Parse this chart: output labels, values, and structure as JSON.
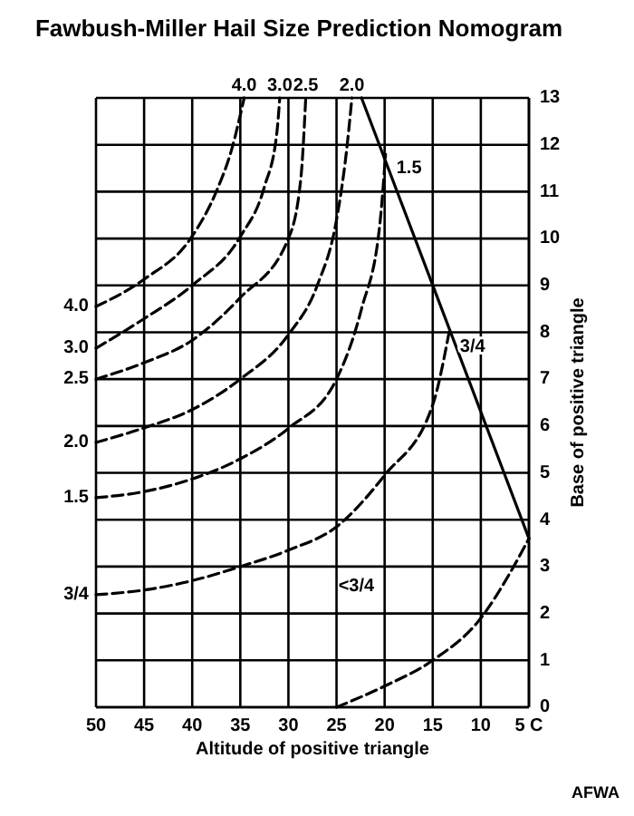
{
  "chart_data": {
    "type": "line",
    "title": "Fawbush-Miller Hail Size Prediction Nomogram",
    "xlabel": "Altitude of positive triangle",
    "ylabel": "Base of positive triangle",
    "xlim": [
      50,
      5
    ],
    "xticks": [
      50,
      45,
      40,
      35,
      30,
      25,
      20,
      15,
      10,
      {
        "value": 5,
        "label": "5 C"
      }
    ],
    "ylim": [
      0,
      13
    ],
    "yticks": [
      0,
      1,
      2,
      3,
      4,
      5,
      6,
      7,
      8,
      9,
      10,
      11,
      12,
      13
    ],
    "grid": true,
    "marker": "none",
    "series": [
      {
        "name": "4.0",
        "color": "#000000",
        "line_style": "dashed",
        "x": [
          50,
          45,
          40,
          37.5,
          35.9,
          34.6
        ],
        "values": [
          8.55,
          9.13,
          10.05,
          11,
          11.9,
          13
        ]
      },
      {
        "name": "3.0",
        "color": "#000000",
        "line_style": "dashed",
        "x": [
          50,
          45,
          40,
          35,
          32.5,
          31.2,
          30.9
        ],
        "values": [
          7.66,
          8.29,
          9,
          10.04,
          11.1,
          12.26,
          13
        ]
      },
      {
        "name": "2.5",
        "color": "#000000",
        "line_style": "dashed",
        "x": [
          50,
          45,
          40,
          35,
          30,
          28.7,
          28.2
        ],
        "values": [
          7,
          7.35,
          7.83,
          8.74,
          10,
          11.3,
          13
        ]
      },
      {
        "name": "2.0",
        "color": "#000000",
        "line_style": "dashed",
        "x": [
          50,
          45,
          40,
          35,
          30,
          27,
          25,
          24,
          23.4
        ],
        "values": [
          5.65,
          5.96,
          6.35,
          7,
          7.95,
          9,
          10.4,
          11.8,
          13
        ]
      },
      {
        "name": "1.5",
        "color": "#000000",
        "line_style": "dashed",
        "x": [
          50,
          45,
          40,
          35,
          30,
          25,
          22.4,
          20.5,
          19.9
        ],
        "values": [
          4.47,
          4.6,
          4.87,
          5.3,
          5.95,
          7,
          8.5,
          10.3,
          11.8
        ]
      },
      {
        "name": "3/4",
        "color": "#000000",
        "line_style": "dashed",
        "x": [
          50,
          45,
          40,
          35,
          30,
          25,
          20,
          15,
          13.3
        ],
        "values": [
          2.4,
          2.5,
          2.7,
          3,
          3.35,
          3.85,
          4.95,
          6.45,
          8
        ]
      },
      {
        "color": "#000000",
        "line_style": "dashed",
        "x": [
          25,
          20,
          15,
          10,
          6.7,
          5
        ],
        "values": [
          0,
          0.45,
          1,
          1.9,
          2.96,
          3.6
        ]
      },
      {
        "color": "#000000",
        "line_style": "solid",
        "x": [
          22.4,
          5
        ],
        "values": [
          13,
          3.6
        ]
      }
    ],
    "annotations": [
      {
        "text": "4.0",
        "x": 34.6,
        "y": 13
      },
      {
        "text": "3.0",
        "x": 30.9,
        "y": 13
      },
      {
        "text": "2.5",
        "x": 28.2,
        "y": 13
      },
      {
        "text": "2.0",
        "x": 23.4,
        "y": 13
      },
      {
        "text": "1.5",
        "x": 19.9,
        "y": 11.8
      },
      {
        "text": "3/4",
        "x": 13.3,
        "y": 8
      },
      "<3/4",
      "AFWA"
    ]
  }
}
